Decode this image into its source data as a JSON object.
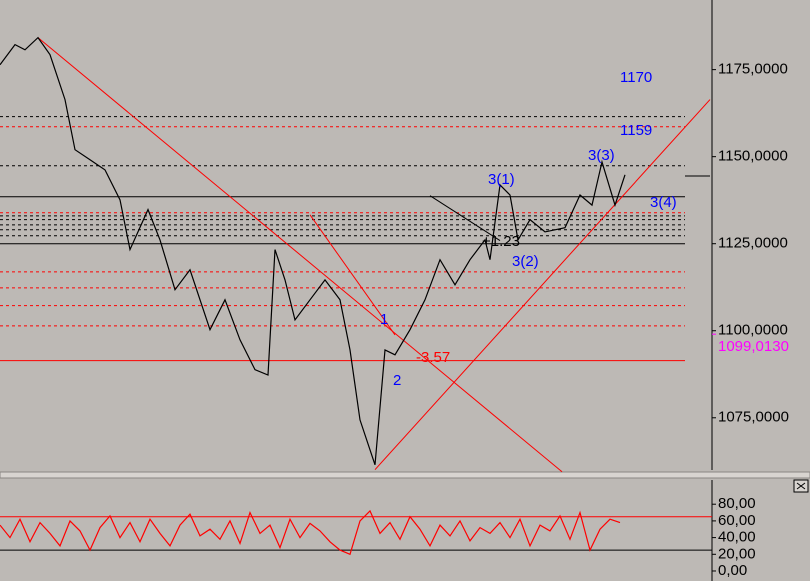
{
  "chart_data": [
    {
      "type": "line",
      "xlim": [
        0,
        712
      ],
      "ylim": [
        1060,
        1195
      ],
      "yticks": [
        {
          "value": 1075,
          "label": "1075,0000"
        },
        {
          "value": 1100,
          "label": "1100,0000"
        },
        {
          "value": 1125,
          "label": "1125,0000"
        },
        {
          "value": 1150,
          "label": "1150,0000"
        },
        {
          "value": 1175,
          "label": "1175,0000"
        }
      ],
      "series": [
        {
          "color": "#000000",
          "x": [
            0,
            15,
            25,
            38,
            50,
            65,
            75,
            90,
            105,
            120,
            130,
            148,
            160,
            175,
            190,
            210,
            225,
            240,
            255,
            268,
            275,
            285,
            295,
            310,
            325,
            340,
            350,
            360,
            375,
            385,
            395,
            410,
            425,
            440,
            455,
            470,
            485,
            490,
            500,
            510,
            518,
            530,
            545,
            565,
            580,
            592,
            602,
            615,
            625
          ],
          "values": [
            1176.4,
            1182.2,
            1180.7,
            1184.2,
            1179.3,
            1166.4,
            1152,
            1149.1,
            1146.2,
            1137.6,
            1123.3,
            1134.8,
            1126.1,
            1111.8,
            1117.5,
            1100.3,
            1108.9,
            1097.4,
            1088.8,
            1087.3,
            1123.3,
            1114.6,
            1103.1,
            1108.9,
            1114.6,
            1108.9,
            1094.5,
            1074.4,
            1061.5,
            1094.5,
            1093.1,
            1100.3,
            1108.9,
            1120.4,
            1113.2,
            1120.4,
            1126.1,
            1120.4,
            1141.9,
            1139,
            1126.1,
            1131.9,
            1128.4,
            1129.6,
            1139,
            1136.1,
            1148.5,
            1136.1,
            1144.8
          ]
        }
      ],
      "levels": [
        {
          "value": 1161.5,
          "color": "#000000",
          "style": "dashed"
        },
        {
          "value": 1158.6,
          "color": "#ff0000",
          "style": "dashed"
        },
        {
          "value": 1147.4,
          "color": "#000000",
          "style": "dashed"
        },
        {
          "value": 1138.5,
          "color": "#000000",
          "style": "solid"
        },
        {
          "value": 1133.9,
          "color": "#ff0000",
          "style": "dashed"
        },
        {
          "value": 1133.0,
          "color": "#000000",
          "style": "dashed"
        },
        {
          "value": 1131.9,
          "color": "#000000",
          "style": "dashed"
        },
        {
          "value": 1130.4,
          "color": "#000000",
          "style": "dashed"
        },
        {
          "value": 1129.0,
          "color": "#000000",
          "style": "dashed"
        },
        {
          "value": 1127.3,
          "color": "#000000",
          "style": "dashed"
        },
        {
          "value": 1125.0,
          "color": "#000000",
          "style": "solid"
        },
        {
          "value": 1116.9,
          "color": "#ff0000",
          "style": "dashed"
        },
        {
          "value": 1112.3,
          "color": "#ff0000",
          "style": "dashed"
        },
        {
          "value": 1107.2,
          "color": "#ff0000",
          "style": "dashed"
        },
        {
          "value": 1101.4,
          "color": "#ff0000",
          "style": "dashed"
        },
        {
          "value": 1091.4,
          "color": "#ff0000",
          "style": "solid"
        }
      ],
      "trendlines": [
        {
          "x": [
            38,
            562
          ],
          "y": [
            1184.2,
            1059.5
          ],
          "color": "#ff0000"
        },
        {
          "x": [
            310,
            395
          ],
          "y": [
            1133.3,
            1098.8
          ],
          "color": "#ff0000"
        },
        {
          "x": [
            375,
            710
          ],
          "y": [
            1060.1,
            1166.4
          ],
          "color": "#ff0000"
        },
        {
          "x": [
            430,
            500
          ],
          "y": [
            1138.8,
            1125.9
          ],
          "color": "#000000"
        }
      ],
      "price_marker": {
        "value": 1099.013,
        "label": "1099,0130",
        "color": "#ff00ff"
      },
      "annotations": [
        {
          "text": "1170",
          "color": "#0000ff"
        },
        {
          "text": "1159",
          "color": "#0000ff"
        },
        {
          "text": "3(1)",
          "color": "#0000ff"
        },
        {
          "text": "3(2)",
          "color": "#0000ff"
        },
        {
          "text": "3(3)",
          "color": "#0000ff"
        },
        {
          "text": "3(4)",
          "color": "#0000ff"
        },
        {
          "text": "1",
          "color": "#0000ff"
        },
        {
          "text": "2",
          "color": "#0000ff"
        },
        {
          "text": "-3.57",
          "color": "#ff0000"
        },
        {
          "text": "+1.23",
          "color": "#000000"
        }
      ]
    },
    {
      "type": "line",
      "xlim": [
        0,
        712
      ],
      "ylim": [
        -12,
        109
      ],
      "yticks": [
        {
          "value": 0,
          "label": "0,00"
        },
        {
          "value": 20,
          "label": "20,00"
        },
        {
          "value": 40,
          "label": "40,00"
        },
        {
          "value": 60,
          "label": "60,00"
        },
        {
          "value": 80,
          "label": "80,00"
        }
      ],
      "series": [
        {
          "color": "#ff0000",
          "x": [
            0,
            10,
            20,
            30,
            40,
            50,
            60,
            70,
            80,
            90,
            100,
            110,
            120,
            130,
            140,
            150,
            160,
            170,
            180,
            190,
            200,
            210,
            220,
            230,
            240,
            250,
            260,
            270,
            280,
            290,
            300,
            310,
            320,
            330,
            340,
            350,
            360,
            370,
            380,
            390,
            400,
            410,
            420,
            430,
            440,
            450,
            460,
            470,
            480,
            490,
            500,
            510,
            520,
            530,
            540,
            550,
            560,
            570,
            580,
            590,
            600,
            610,
            620
          ],
          "values": [
            55,
            40,
            62,
            35,
            58,
            45,
            30,
            60,
            48,
            25,
            52,
            66,
            40,
            58,
            35,
            62,
            45,
            30,
            55,
            68,
            42,
            50,
            38,
            60,
            33,
            70,
            45,
            55,
            28,
            62,
            40,
            57,
            48,
            35,
            25,
            20,
            60,
            72,
            45,
            58,
            38,
            65,
            50,
            30,
            55,
            42,
            60,
            36,
            52,
            45,
            58,
            40,
            62,
            30,
            55,
            48,
            66,
            38,
            70,
            25,
            50,
            62,
            58
          ]
        }
      ],
      "levels": [
        {
          "value": 65,
          "color": "#ff0000",
          "style": "solid"
        },
        {
          "value": 25,
          "color": "#000000",
          "style": "solid"
        }
      ]
    }
  ]
}
